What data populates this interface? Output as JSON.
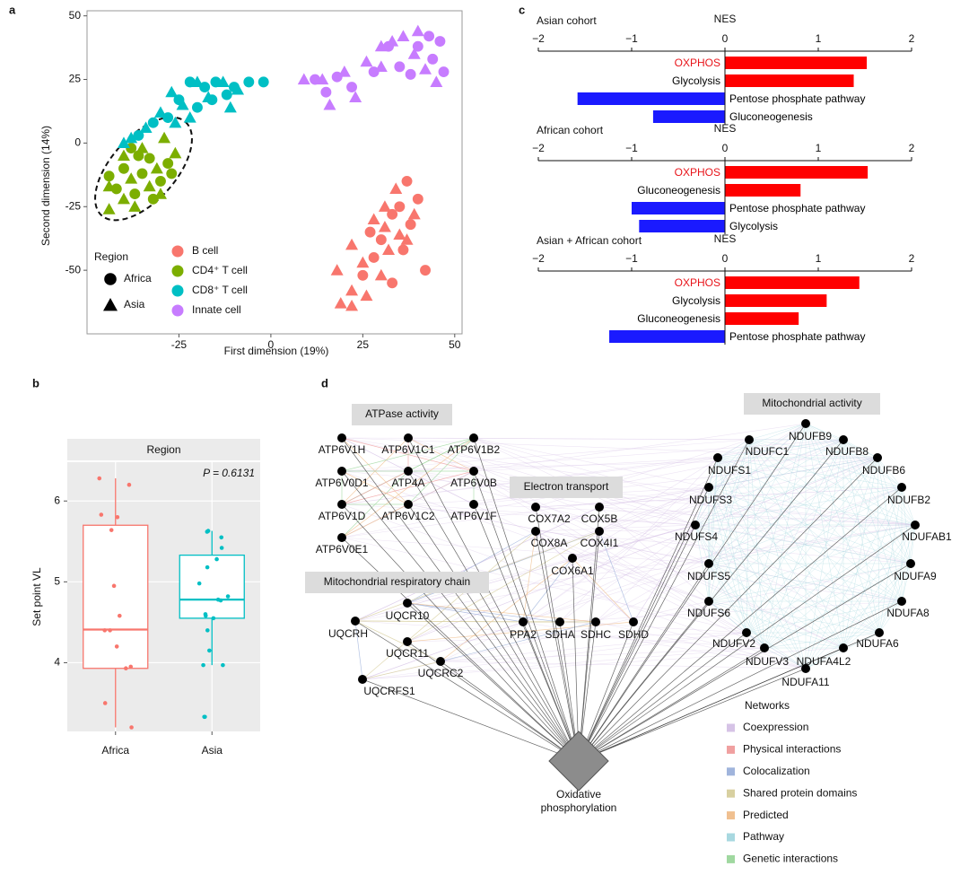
{
  "panels": [
    "a",
    "b",
    "c",
    "d"
  ],
  "chart_data": [
    {
      "type": "scatter",
      "xlabel": "First dimension (19%)",
      "ylabel": "Second dimension (14%)",
      "xlim": [
        -50,
        52
      ],
      "ylim": [
        -75,
        52
      ],
      "xticks": [
        -25,
        0,
        25,
        50
      ],
      "yticks": [
        -50,
        -25,
        0,
        25,
        50
      ],
      "shape_legend": {
        "title": "Region",
        "items": [
          "Africa",
          "Asia"
        ],
        "shapes": [
          "circle",
          "triangle"
        ]
      },
      "series": [
        {
          "name": "B cell",
          "color": "#f8766d",
          "x": [
            37,
            40,
            33,
            38,
            30,
            36,
            28,
            42,
            25,
            33,
            35,
            27,
            34,
            31,
            39,
            28,
            35,
            22,
            32,
            25,
            18,
            30,
            22,
            26,
            22,
            19,
            31,
            37
          ],
          "y": [
            -15,
            -22,
            -28,
            -32,
            -38,
            -42,
            -45,
            -50,
            -52,
            -55,
            -25,
            -35,
            -18,
            -25,
            -28,
            -30,
            -36,
            -40,
            -42,
            -47,
            -50,
            -52,
            -58,
            -60,
            -64,
            -63,
            -33,
            -38
          ],
          "region": [
            0,
            0,
            0,
            0,
            0,
            0,
            0,
            0,
            0,
            0,
            0,
            0,
            1,
            1,
            1,
            1,
            1,
            1,
            1,
            1,
            1,
            1,
            1,
            1,
            1,
            1,
            1,
            1
          ]
        },
        {
          "name": "CD4⁺ T cell",
          "color": "#7cae00",
          "x": [
            -38,
            -33,
            -40,
            -35,
            -30,
            -42,
            -37,
            -28,
            -32,
            -27,
            -36,
            -44,
            -29,
            -35,
            -40,
            -31,
            -38,
            -44,
            -33,
            -40,
            -37,
            -44,
            -30,
            -26
          ],
          "y": [
            -2,
            -6,
            -10,
            -12,
            -15,
            -18,
            -20,
            -8,
            -22,
            -12,
            -5,
            -13,
            2,
            -2,
            -5,
            -10,
            -14,
            -17,
            -17,
            -22,
            -25,
            -26,
            -20,
            -4
          ],
          "region": [
            0,
            0,
            0,
            0,
            0,
            0,
            0,
            0,
            0,
            0,
            0,
            0,
            1,
            1,
            1,
            1,
            1,
            1,
            1,
            1,
            1,
            1,
            1,
            1
          ]
        },
        {
          "name": "CD8⁺ T cell",
          "color": "#00bfc4",
          "x": [
            -25,
            -22,
            -18,
            -15,
            -12,
            -10,
            -6,
            -2,
            -28,
            -32,
            -20,
            -16,
            -36,
            -27,
            -24,
            -20,
            -17,
            -13,
            -11,
            -9,
            -30,
            -34,
            -38,
            -26,
            -22,
            -40
          ],
          "y": [
            17,
            24,
            22,
            24,
            19,
            22,
            24,
            24,
            10,
            8,
            14,
            17,
            3,
            20,
            15,
            24,
            18,
            24,
            14,
            21,
            12,
            6,
            2,
            8,
            10,
            0
          ],
          "region": [
            0,
            0,
            0,
            0,
            0,
            0,
            0,
            0,
            0,
            0,
            0,
            0,
            0,
            1,
            1,
            1,
            1,
            1,
            1,
            1,
            1,
            1,
            1,
            1,
            1,
            1
          ]
        },
        {
          "name": "Innate cell",
          "color": "#c77cff",
          "x": [
            12,
            18,
            22,
            28,
            35,
            40,
            43,
            46,
            47,
            38,
            32,
            44,
            15,
            9,
            14,
            16,
            20,
            23,
            26,
            30,
            33,
            36,
            39,
            42,
            45,
            40,
            30
          ],
          "y": [
            25,
            26,
            22,
            28,
            30,
            38,
            42,
            40,
            28,
            27,
            38,
            33,
            20,
            25,
            25,
            15,
            28,
            18,
            32,
            30,
            40,
            42,
            35,
            29,
            24,
            44,
            38
          ],
          "region": [
            0,
            0,
            0,
            0,
            0,
            0,
            0,
            0,
            0,
            0,
            0,
            0,
            0,
            1,
            1,
            1,
            1,
            1,
            1,
            1,
            1,
            1,
            1,
            1,
            1,
            1,
            1
          ]
        }
      ]
    },
    {
      "type": "box",
      "strip": "Region",
      "annotation": "P = 0.6131",
      "ylabel": "Set point VL",
      "categories": [
        "Africa",
        "Asia"
      ],
      "colors": [
        "#f8766d",
        "#00bfc4"
      ],
      "ylim": [
        3.15,
        6.48
      ],
      "yticks": [
        4,
        5,
        6
      ],
      "grid": true,
      "boxes": [
        {
          "whisker_low": 3.2,
          "q1": 3.93,
          "median": 4.41,
          "q3": 5.7,
          "whisker_high": 6.28,
          "points": [
            6.28,
            6.2,
            5.83,
            5.8,
            5.64,
            4.95,
            4.58,
            4.4,
            4.4,
            4.2,
            3.95,
            3.93,
            3.5,
            3.2
          ]
        },
        {
          "whisker_low": 3.97,
          "q1": 4.55,
          "median": 4.78,
          "q3": 5.33,
          "whisker_high": 5.63,
          "points": [
            5.63,
            5.62,
            5.55,
            5.42,
            5.28,
            5.18,
            4.98,
            4.82,
            4.78,
            4.77,
            4.6,
            4.58,
            4.55,
            4.4,
            4.15,
            3.97,
            3.97,
            3.33,
            3.33
          ]
        }
      ]
    },
    {
      "type": "hbar",
      "title": "Asian cohort",
      "xlabel": "NES",
      "xlim": [
        -2,
        2
      ],
      "xticks": [
        {
          "value": -2,
          "label": "−2"
        },
        {
          "value": -1,
          "label": "−1"
        },
        0,
        1,
        2
      ],
      "categories": [
        "OXPHOS",
        "Glycolysis",
        "Pentose phosphate pathway",
        "Gluconeogenesis"
      ],
      "values": [
        1.52,
        1.38,
        -1.58,
        -0.77
      ],
      "colors": [
        "#ff0000",
        "#ff0000",
        "#1a1aff",
        "#1a1aff"
      ],
      "label_colors": [
        "#e8141a",
        "#000000",
        "#000000",
        "#000000"
      ]
    },
    {
      "type": "hbar",
      "title": "African cohort",
      "xlabel": "NES",
      "xlim": [
        -2,
        2
      ],
      "xticks": [
        {
          "value": -2,
          "label": "−2"
        },
        {
          "value": -1,
          "label": "−1"
        },
        0,
        1,
        2
      ],
      "categories": [
        "OXPHOS",
        "Gluconeogenesis",
        "Pentose phosphate pathway",
        "Glycolysis"
      ],
      "values": [
        1.53,
        0.81,
        -1.0,
        -0.92
      ],
      "colors": [
        "#ff0000",
        "#ff0000",
        "#1a1aff",
        "#1a1aff"
      ],
      "label_colors": [
        "#e8141a",
        "#000000",
        "#000000",
        "#000000"
      ]
    },
    {
      "type": "hbar",
      "title": "Asian + African cohort",
      "xlabel": "NES",
      "xlim": [
        -2,
        2
      ],
      "xticks": [
        {
          "value": -2,
          "label": "−2"
        },
        {
          "value": -1,
          "label": "−1"
        },
        0,
        1,
        2
      ],
      "categories": [
        "OXPHOS",
        "Glycolysis",
        "Gluconeogenesis",
        "Pentose phosphate pathway"
      ],
      "values": [
        1.44,
        1.09,
        0.79,
        -1.24
      ],
      "colors": [
        "#ff0000",
        "#ff0000",
        "#ff0000",
        "#1a1aff"
      ],
      "label_colors": [
        "#e8141a",
        "#000000",
        "#000000",
        "#000000"
      ]
    }
  ],
  "network": {
    "groups": [
      "ATPase activity",
      "Electron transport",
      "Mitochondrial respiratory chain",
      "Mitochondrial activity"
    ],
    "nodes": [
      "ATP6V1H",
      "ATP6V1C1",
      "ATP6V1B2",
      "ATP6V0D1",
      "ATP4A",
      "ATP6V0B",
      "ATP6V1D",
      "ATP6V1C2",
      "ATP6V1F",
      "ATP6V0E1",
      "COX7A2",
      "COX5B",
      "COX8A",
      "COX4I1",
      "COX6A1",
      "UQCR10",
      "UQCRH",
      "UQCR11",
      "UQCRC2",
      "UQCRFS1",
      "PPA2",
      "SDHA",
      "SDHC",
      "SDHD",
      "NDUFB9",
      "NDUFC1",
      "NDUFB8",
      "NDUFS1",
      "NDUFB6",
      "NDUFS3",
      "NDUFB2",
      "NDUFS4",
      "NDUFAB1",
      "NDUFS5",
      "NDUFA9",
      "NDUFS6",
      "NDUFA8",
      "NDUFV2",
      "NDUFA6",
      "NDUFV3",
      "NDUFA4L2",
      "NDUFA11"
    ],
    "hub": [
      "Oxidative",
      "phosphorylation"
    ],
    "legend": {
      "title": "Networks",
      "items": [
        {
          "name": "Coexpression",
          "color": "#d6c3e6"
        },
        {
          "name": "Physical interactions",
          "color": "#f0a0a0"
        },
        {
          "name": "Colocalization",
          "color": "#a0b4dc"
        },
        {
          "name": "Shared protein domains",
          "color": "#d8d0a0"
        },
        {
          "name": "Predicted",
          "color": "#f0c090"
        },
        {
          "name": "Pathway",
          "color": "#a8d8e0"
        },
        {
          "name": "Genetic interactions",
          "color": "#a0d8a0"
        }
      ]
    }
  }
}
